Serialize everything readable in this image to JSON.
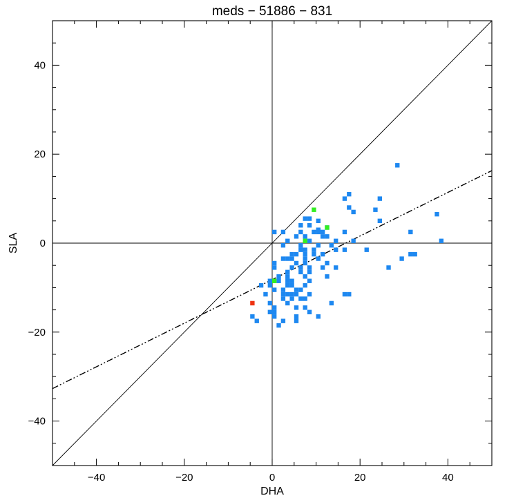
{
  "chart_data": {
    "type": "scatter",
    "title": "meds − 51886 − 831",
    "xlabel": "DHA",
    "ylabel": "SLA",
    "xlim": [
      -50,
      50
    ],
    "ylim": [
      -50,
      50
    ],
    "xticks": [
      -40,
      -20,
      0,
      20,
      40
    ],
    "yticks": [
      -40,
      -20,
      0,
      20,
      40
    ],
    "xtick_labels": [
      "−40",
      "−20",
      "0",
      "20",
      "40"
    ],
    "ytick_labels": [
      "−40",
      "−20",
      "0",
      "20",
      "40"
    ],
    "minor_tick_step": 5,
    "grid": false,
    "reference_lines": [
      {
        "style": "solid",
        "description": "zero line",
        "points": [
          [
            -50,
            0
          ],
          [
            50,
            0
          ]
        ]
      },
      {
        "style": "solid",
        "description": "zero line",
        "points": [
          [
            0,
            -50
          ],
          [
            0,
            50
          ]
        ]
      },
      {
        "style": "solid",
        "description": "1:1 line",
        "points": [
          [
            -50,
            -50
          ],
          [
            50,
            50
          ]
        ]
      },
      {
        "style": "dash-dot-dot",
        "description": "regression fit",
        "points": [
          [
            -50,
            -32.7
          ],
          [
            50,
            16.3
          ]
        ]
      }
    ],
    "colors": {
      "blue": "#1e88f0",
      "green": "#33ee22",
      "red": "#ee3311",
      "axes": "#000000"
    },
    "series": [
      {
        "color": "blue",
        "points": [
          [
            28.5,
            17.5
          ],
          [
            17.5,
            11.0
          ],
          [
            16.5,
            10.0
          ],
          [
            24.5,
            10.0
          ],
          [
            17.5,
            8.0
          ],
          [
            18.5,
            7.0
          ],
          [
            23.5,
            7.5
          ],
          [
            37.5,
            6.5
          ],
          [
            24.5,
            5.0
          ],
          [
            7.5,
            5.5
          ],
          [
            8.5,
            5.5
          ],
          [
            10.5,
            5.0
          ],
          [
            6.5,
            4.0
          ],
          [
            8.5,
            4.0
          ],
          [
            12.5,
            3.5
          ],
          [
            10.5,
            3.0
          ],
          [
            0.5,
            2.5
          ],
          [
            2.5,
            2.5
          ],
          [
            6.5,
            2.5
          ],
          [
            9.5,
            2.5
          ],
          [
            10.5,
            2.5
          ],
          [
            11.5,
            2.5
          ],
          [
            16.5,
            2.5
          ],
          [
            31.5,
            2.5
          ],
          [
            5.5,
            1.5
          ],
          [
            7.5,
            1.5
          ],
          [
            11.5,
            1.5
          ],
          [
            12.5,
            1.5
          ],
          [
            3.5,
            0.5
          ],
          [
            8.5,
            0.5
          ],
          [
            14.5,
            0.5
          ],
          [
            18.5,
            0.5
          ],
          [
            38.5,
            0.5
          ],
          [
            2.5,
            -0.5
          ],
          [
            6.5,
            -0.5
          ],
          [
            10.5,
            -0.5
          ],
          [
            13.5,
            -0.5
          ],
          [
            6.5,
            -1.5
          ],
          [
            7.5,
            -1.5
          ],
          [
            9.5,
            -1.5
          ],
          [
            14.5,
            -1.5
          ],
          [
            16.5,
            -1.5
          ],
          [
            21.5,
            -1.5
          ],
          [
            4.5,
            -2.5
          ],
          [
            5.5,
            -2.5
          ],
          [
            7.5,
            -2.5
          ],
          [
            9.5,
            -2.5
          ],
          [
            11.5,
            -2.5
          ],
          [
            31.5,
            -2.5
          ],
          [
            32.5,
            -2.5
          ],
          [
            2.5,
            -3.5
          ],
          [
            3.5,
            -3.5
          ],
          [
            4.5,
            -3.5
          ],
          [
            7.5,
            -3.5
          ],
          [
            10.5,
            -3.5
          ],
          [
            29.5,
            -3.5
          ],
          [
            0.5,
            -4.5
          ],
          [
            5.5,
            -4.5
          ],
          [
            7.5,
            -4.5
          ],
          [
            12.5,
            -4.5
          ],
          [
            0.5,
            -5.5
          ],
          [
            4.5,
            -5.5
          ],
          [
            6.5,
            -5.5
          ],
          [
            8.5,
            -5.5
          ],
          [
            11.5,
            -5.5
          ],
          [
            14.5,
            -5.5
          ],
          [
            26.5,
            -5.5
          ],
          [
            3.5,
            -6.5
          ],
          [
            6.5,
            -6.5
          ],
          [
            8.5,
            -6.5
          ],
          [
            1.5,
            -7.5
          ],
          [
            3.5,
            -7.5
          ],
          [
            7.5,
            -7.5
          ],
          [
            12.5,
            -7.5
          ],
          [
            -0.5,
            -8.5
          ],
          [
            1.5,
            -8.5
          ],
          [
            3.5,
            -8.5
          ],
          [
            4.5,
            -8.5
          ],
          [
            8.5,
            -8.5
          ],
          [
            -2.5,
            -9.5
          ],
          [
            -0.5,
            -9.5
          ],
          [
            3.5,
            -9.5
          ],
          [
            4.5,
            -9.5
          ],
          [
            7.5,
            -9.5
          ],
          [
            0.5,
            -10.5
          ],
          [
            2.5,
            -10.5
          ],
          [
            5.5,
            -10.5
          ],
          [
            6.5,
            -10.5
          ],
          [
            -1.5,
            -11.5
          ],
          [
            2.5,
            -11.5
          ],
          [
            3.5,
            -11.5
          ],
          [
            4.5,
            -11.5
          ],
          [
            5.5,
            -11.5
          ],
          [
            8.5,
            -11.5
          ],
          [
            16.5,
            -11.5
          ],
          [
            17.5,
            -11.5
          ],
          [
            2.5,
            -12.5
          ],
          [
            4.5,
            -12.5
          ],
          [
            6.5,
            -12.5
          ],
          [
            7.5,
            -12.5
          ],
          [
            -0.5,
            -13.5
          ],
          [
            3.5,
            -13.5
          ],
          [
            13.5,
            -13.5
          ],
          [
            0.5,
            -14.5
          ],
          [
            5.5,
            -14.5
          ],
          [
            7.5,
            -14.5
          ],
          [
            -0.5,
            -15.5
          ],
          [
            0.5,
            -15.5
          ],
          [
            8.5,
            -15.5
          ],
          [
            -4.5,
            -16.5
          ],
          [
            0.5,
            -16.5
          ],
          [
            5.5,
            -16.5
          ],
          [
            10.5,
            -16.5
          ],
          [
            -3.5,
            -17.5
          ],
          [
            2.5,
            -17.5
          ],
          [
            5.5,
            -17.5
          ],
          [
            1.5,
            -18.5
          ]
        ]
      },
      {
        "color": "green",
        "points": [
          [
            9.5,
            7.5
          ],
          [
            12.5,
            3.5
          ],
          [
            7.5,
            0.5
          ],
          [
            0.5,
            -8.5
          ]
        ]
      },
      {
        "color": "red",
        "points": [
          [
            -4.5,
            -13.5
          ]
        ]
      }
    ]
  }
}
